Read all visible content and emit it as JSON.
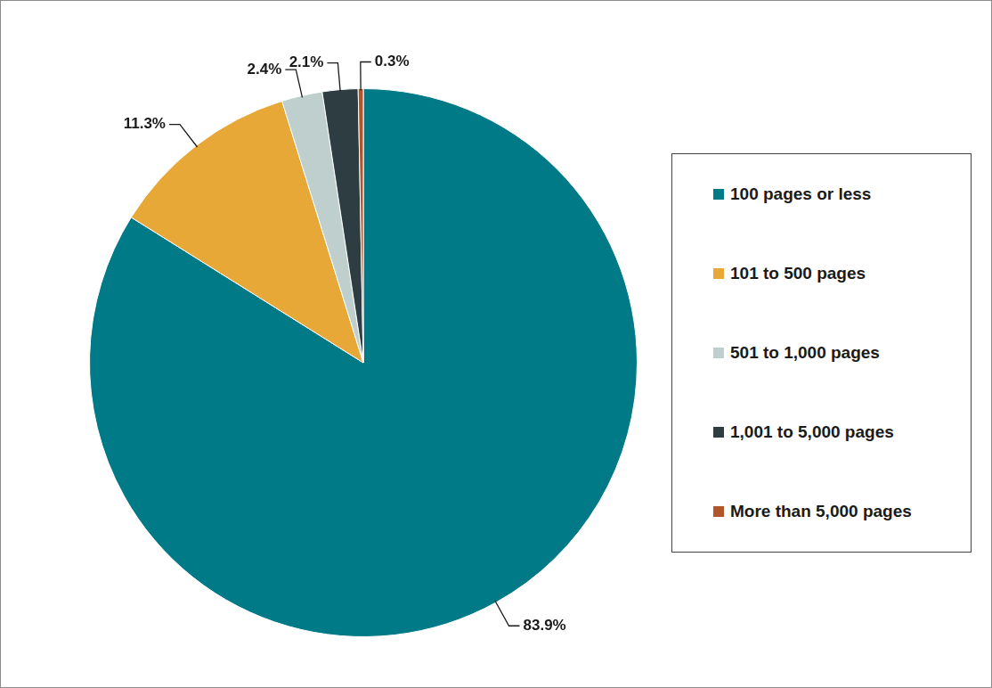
{
  "chart_data": {
    "type": "pie",
    "categories": [
      "100 pages or less",
      "101 to 500 pages",
      "501 to 1,000 pages",
      "1,001 to 5,000 pages",
      "More than 5,000 pages"
    ],
    "values": [
      83.9,
      11.3,
      2.4,
      2.1,
      0.3
    ],
    "value_labels": [
      "83.9%",
      "11.3%",
      "2.4%",
      "2.1%",
      "0.3%"
    ],
    "colors": [
      "#007a87",
      "#e8a838",
      "#bfcfcd",
      "#2e3d42",
      "#b0562a"
    ],
    "data_labels": true,
    "legend": "right"
  }
}
